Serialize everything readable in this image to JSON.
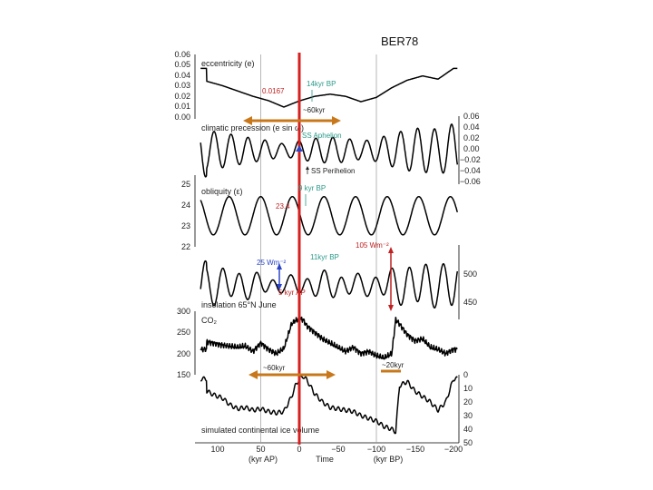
{
  "chart_data": {
    "type": "line",
    "title": "BER78",
    "x_axis": {
      "range": [
        120,
        -200
      ],
      "ticks": [
        "100",
        "50",
        "0",
        "−50",
        "−100",
        "−150",
        "−200"
      ],
      "label_left": "(kyr AP)",
      "label_center": "Time",
      "label_right": "(kyr BP)"
    },
    "colors": {
      "curve": "#000000",
      "present_line": "#d62020",
      "annotation": "#2b9a8a",
      "ellipse_arrow": "#c8781a",
      "blue_marker": "#2a44c8",
      "red_marker": "#c02020"
    },
    "panels": [
      {
        "label": "eccentricity (e)",
        "axis_side": "left",
        "range": [
          0,
          0.06
        ],
        "ticks": [
          "0.06",
          "0.05",
          "0.04",
          "0.03",
          "0.02",
          "0.01",
          "0.00"
        ],
        "x": [
          120,
          100,
          80,
          60,
          40,
          20,
          0,
          -20,
          -40,
          -60,
          -80,
          -100,
          -120,
          -140,
          -160,
          -180,
          -200
        ],
        "values": [
          0.035,
          0.031,
          0.026,
          0.021,
          0.017,
          0.011,
          0.0167,
          0.021,
          0.023,
          0.021,
          0.016,
          0.02,
          0.029,
          0.036,
          0.04,
          0.037,
          0.047
        ]
      },
      {
        "label": "climatic precession (e sin ω)",
        "axis_side": "right",
        "range": [
          -0.06,
          0.06
        ],
        "ticks": [
          "0.06",
          "0.04",
          "0.02",
          "0.00",
          "−0.02",
          "−0.04",
          "−0.06"
        ],
        "oscillation": {
          "period_kyr": 22,
          "amplitude_source": "eccentricity"
        }
      },
      {
        "label": "obliquity (ε)",
        "axis_side": "left",
        "range": [
          22,
          25
        ],
        "ticks": [
          "25",
          "24",
          "23",
          "22"
        ],
        "oscillation": {
          "period_kyr": 41,
          "mean": 23.3,
          "amplitude": 0.8
        }
      },
      {
        "label": "insolation 65°N June",
        "axis_side": "right",
        "range": [
          430,
          560
        ],
        "ticks": [
          "500",
          "450"
        ],
        "oscillation": {
          "period_kyr": 22,
          "mean": 490,
          "amplitude": 25
        }
      },
      {
        "label": "CO₂",
        "axis_side": "left",
        "range": [
          150,
          300
        ],
        "ticks": [
          "300",
          "250",
          "200",
          "150"
        ],
        "x": [
          120,
          100,
          80,
          70,
          60,
          50,
          40,
          30,
          20,
          10,
          5,
          0,
          -5,
          -10,
          -20,
          -30,
          -40,
          -50,
          -60,
          -70,
          -80,
          -90,
          -100,
          -110,
          -120,
          -125,
          -130,
          -140,
          -150,
          -160,
          -170,
          -180,
          -190,
          -200
        ],
        "values": [
          228,
          220,
          215,
          218,
          205,
          225,
          210,
          200,
          212,
          270,
          278,
          282,
          280,
          265,
          250,
          235,
          225,
          215,
          205,
          215,
          200,
          205,
          195,
          190,
          200,
          280,
          270,
          245,
          230,
          235,
          215,
          210,
          200,
          210
        ]
      },
      {
        "label": "simulated continental ice volume",
        "axis_side": "right",
        "range": [
          0,
          50
        ],
        "ticks": [
          "0",
          "10",
          "20",
          "30",
          "40",
          "50"
        ],
        "x": [
          120,
          110,
          100,
          90,
          80,
          70,
          60,
          50,
          40,
          30,
          20,
          10,
          5,
          0,
          -5,
          -10,
          -20,
          -30,
          -40,
          -50,
          -60,
          -70,
          -80,
          -90,
          -100,
          -110,
          -120,
          -125,
          -130,
          -140,
          -150,
          -160,
          -170,
          -180,
          -190,
          -200
        ],
        "values": [
          12,
          15,
          17,
          22,
          25,
          24,
          26,
          25,
          27,
          28,
          27,
          16,
          8,
          3,
          1,
          4,
          14,
          20,
          24,
          25,
          26,
          27,
          30,
          32,
          34,
          38,
          40,
          42,
          8,
          5,
          12,
          16,
          20,
          26,
          20,
          3
        ]
      }
    ],
    "annotations": {
      "eccentricity_value": "0.0167",
      "ecc_cursor_label": "14kyr BP",
      "ecc_span_label": "~60kyr",
      "aphelion_label": "SS Aphelion",
      "perihelion_label": "SS Perihelion",
      "obliquity_cursor_label": "9 kyr BP",
      "obliquity_value": "23.4",
      "insolation_change_right": "105 Wm⁻²",
      "insolation_cursor_label": "11kyr BP",
      "insolation_change_left": "25 Wm⁻²",
      "insolation_future_label": "5 kyr AP",
      "co2_span_label": "~60kyr",
      "ice_span_label": "~20kyr"
    }
  }
}
